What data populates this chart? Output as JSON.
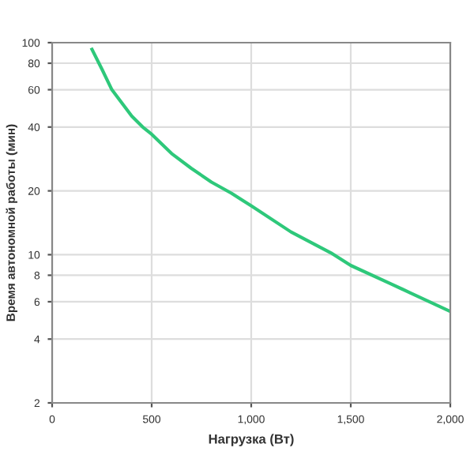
{
  "chart_data": {
    "type": "line",
    "xlabel": "Нагрузка (Вт)",
    "ylabel": "Время автономной работы (мин)",
    "log": "y",
    "grid": true,
    "marker": "none",
    "line_style": "solid",
    "xlim": [
      0,
      2000
    ],
    "xticks": [
      0,
      500,
      {
        "value": 1000,
        "label": "1,000"
      },
      {
        "value": 1500,
        "label": "1,500"
      },
      {
        "value": 2000,
        "label": "2,000"
      }
    ],
    "ylim": [
      2,
      100
    ],
    "yticks": [
      2,
      4,
      6,
      8,
      10,
      20,
      40,
      60,
      80,
      100
    ],
    "series": [
      {
        "color": "#2ec87a",
        "x": [
          200,
          250,
          300,
          400,
          455,
          500,
          600,
          700,
          800,
          900,
          1000,
          1200,
          1400,
          1500,
          1700,
          1800,
          2000
        ],
        "values": [
          93,
          75,
          60,
          45,
          40,
          37,
          30,
          25.5,
          22,
          19.5,
          17,
          12.8,
          10.2,
          8.9,
          7.3,
          6.6,
          5.4
        ]
      }
    ]
  }
}
